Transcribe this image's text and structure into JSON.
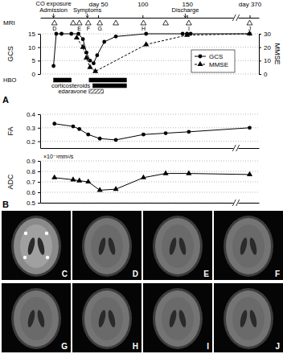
{
  "chart_data": [
    {
      "type": "line",
      "xlim": [
        -15,
        380
      ],
      "xbreak": [
        200,
        360
      ],
      "xticks": [
        {
          "value": 50,
          "label": "day 50"
        },
        100,
        150,
        {
          "value": 370,
          "label": "day 370"
        }
      ],
      "ylim": [
        0,
        15
      ],
      "yticks": [
        0,
        5,
        10,
        15
      ],
      "y_label": "GCS",
      "y2lim": [
        0,
        30
      ],
      "y2ticks": [
        0,
        10,
        20,
        30
      ],
      "y2_label": "MMSE",
      "grid": true,
      "legend": "lower right",
      "series": [
        {
          "name": "GCS",
          "color": "#000000",
          "marker": "circle",
          "line_style": "solid",
          "x": [
            0,
            3,
            9,
            20,
            28,
            33,
            37,
            41,
            45,
            49,
            57,
            70,
            104,
            145,
            150,
            154,
            370
          ],
          "values": [
            3,
            15,
            15,
            15,
            15,
            13,
            8,
            5,
            4,
            7,
            12,
            14,
            15,
            15,
            15,
            15,
            15
          ]
        },
        {
          "name": "MMSE",
          "color": "#000000",
          "marker": "triangle",
          "line_style": "dashed",
          "axis": "y2",
          "x": [
            26,
            33,
            37,
            41,
            47,
            104,
            150,
            370
          ],
          "values": [
            27,
            20,
            12,
            5,
            2,
            22,
            29,
            30
          ]
        }
      ],
      "annotations": [
        {
          "text": "CO exposure",
          "x": 0
        },
        {
          "text": "Admission",
          "x": 0
        },
        {
          "text": "Symptoms",
          "x": 38
        },
        {
          "text": "Discharge",
          "x": 148
        }
      ],
      "mri": {
        "label": "MRI",
        "x": [
          1,
          22,
          29,
          39,
          52,
          70,
          101,
          126,
          152,
          370
        ],
        "labels": [
          "D",
          null,
          "E",
          "F",
          "G",
          null,
          "H",
          null,
          "I",
          "J"
        ]
      },
      "treatments": [
        {
          "name": "HBO",
          "type": "solid",
          "periods": [
            [
              0,
              20
            ],
            [
              40,
              82
            ]
          ]
        },
        {
          "name": "corticosteroids",
          "type": "solid",
          "periods": [
            [
              44,
              82
            ]
          ]
        },
        {
          "name": "edaravone",
          "type": "hatched",
          "periods": [
            [
              40,
              56
            ]
          ]
        }
      ]
    },
    {
      "type": "line",
      "xlim": [
        -15,
        380
      ],
      "xbreak": [
        200,
        360
      ],
      "xticks": [],
      "tick_labels": "y",
      "ylim": [
        0.15,
        0.4
      ],
      "yticks": [
        0.2,
        0.3,
        0.4
      ],
      "y_label": "FA",
      "grid": true,
      "series": [
        {
          "color": "#000000",
          "marker": "circle",
          "line_style": "solid",
          "x": [
            1,
            22,
            29,
            39,
            52,
            70,
            101,
            126,
            152,
            370
          ],
          "values": [
            0.33,
            0.31,
            0.29,
            0.25,
            0.22,
            0.21,
            0.25,
            0.26,
            0.27,
            0.3
          ]
        }
      ]
    },
    {
      "type": "line",
      "xlim": [
        -15,
        380
      ],
      "xbreak": [
        200,
        360
      ],
      "xticks": [],
      "tick_labels": "y",
      "ylim": [
        0.5,
        0.9
      ],
      "yticks": [
        0.5,
        0.6,
        0.7,
        0.8,
        0.9
      ],
      "y_label": "ADC",
      "grid": true,
      "annotations": [
        {
          "text": "×10⁻³mm²/s"
        }
      ],
      "series": [
        {
          "color": "#000000",
          "marker": "triangle",
          "line_style": "solid",
          "x": [
            1,
            22,
            29,
            39,
            52,
            70,
            101,
            126,
            152,
            370
          ],
          "values": [
            0.74,
            0.72,
            0.71,
            0.7,
            0.62,
            0.63,
            0.74,
            0.78,
            0.78,
            0.77
          ]
        }
      ]
    }
  ],
  "panel_labels": [
    "A",
    "B"
  ],
  "images": {
    "labels": [
      "C",
      "D",
      "E",
      "F",
      "G",
      "H",
      "I",
      "J"
    ]
  }
}
